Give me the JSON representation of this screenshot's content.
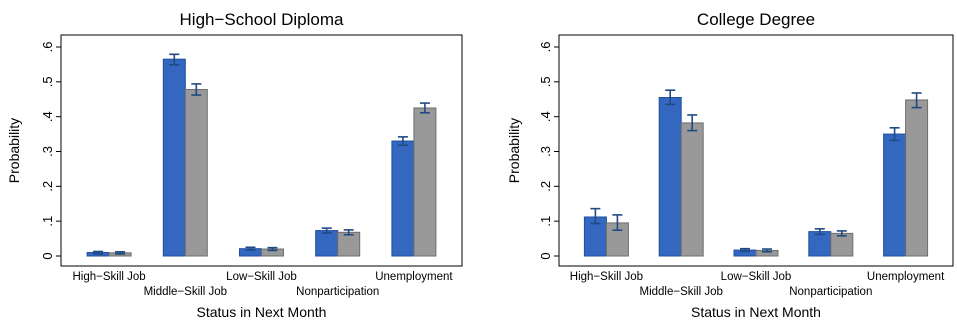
{
  "chart_data": [
    {
      "type": "bar",
      "title": "High−School Diploma",
      "xlabel": "Status in Next Month",
      "ylabel": "Probability",
      "ylim": [
        0,
        0.6
      ],
      "yticks": [
        0,
        0.1,
        0.2,
        0.3,
        0.4,
        0.5,
        0.6
      ],
      "ytick_labels": [
        "0",
        ".1",
        ".2",
        ".3",
        ".4",
        ".5",
        ".6"
      ],
      "categories": [
        "High−Skill Job",
        "Middle−Skill Job",
        "Low−Skill Job",
        "Nonparticipation",
        "Unemployment"
      ],
      "grid": false,
      "legend": "none",
      "series": [
        {
          "color": "#3468c0",
          "values": [
            0.01,
            0.565,
            0.021,
            0.073,
            0.33
          ],
          "ci_low": [
            0.006,
            0.549,
            0.017,
            0.066,
            0.318
          ],
          "ci_high": [
            0.013,
            0.579,
            0.025,
            0.08,
            0.342
          ]
        },
        {
          "color": "#999999",
          "values": [
            0.009,
            0.478,
            0.02,
            0.068,
            0.425
          ],
          "ci_low": [
            0.006,
            0.462,
            0.016,
            0.061,
            0.411
          ],
          "ci_high": [
            0.012,
            0.494,
            0.024,
            0.075,
            0.439
          ]
        }
      ]
    },
    {
      "type": "bar",
      "title": "College Degree",
      "xlabel": "Status in Next Month",
      "ylabel": "Probability",
      "ylim": [
        0,
        0.6
      ],
      "yticks": [
        0,
        0.1,
        0.2,
        0.3,
        0.4,
        0.5,
        0.6
      ],
      "ytick_labels": [
        "0",
        ".1",
        ".2",
        ".3",
        ".4",
        ".5",
        ".6"
      ],
      "categories": [
        "High−Skill Job",
        "Middle−Skill Job",
        "Low−Skill Job",
        "Nonparticipation",
        "Unemployment"
      ],
      "grid": false,
      "legend": "none",
      "series": [
        {
          "color": "#3468c0",
          "values": [
            0.112,
            0.455,
            0.017,
            0.07,
            0.35
          ],
          "ci_low": [
            0.093,
            0.435,
            0.013,
            0.062,
            0.332
          ],
          "ci_high": [
            0.136,
            0.476,
            0.021,
            0.078,
            0.368
          ]
        },
        {
          "color": "#999999",
          "values": [
            0.095,
            0.382,
            0.016,
            0.065,
            0.448
          ],
          "ci_low": [
            0.074,
            0.36,
            0.012,
            0.058,
            0.426
          ],
          "ci_high": [
            0.118,
            0.405,
            0.02,
            0.072,
            0.468
          ]
        }
      ]
    }
  ]
}
